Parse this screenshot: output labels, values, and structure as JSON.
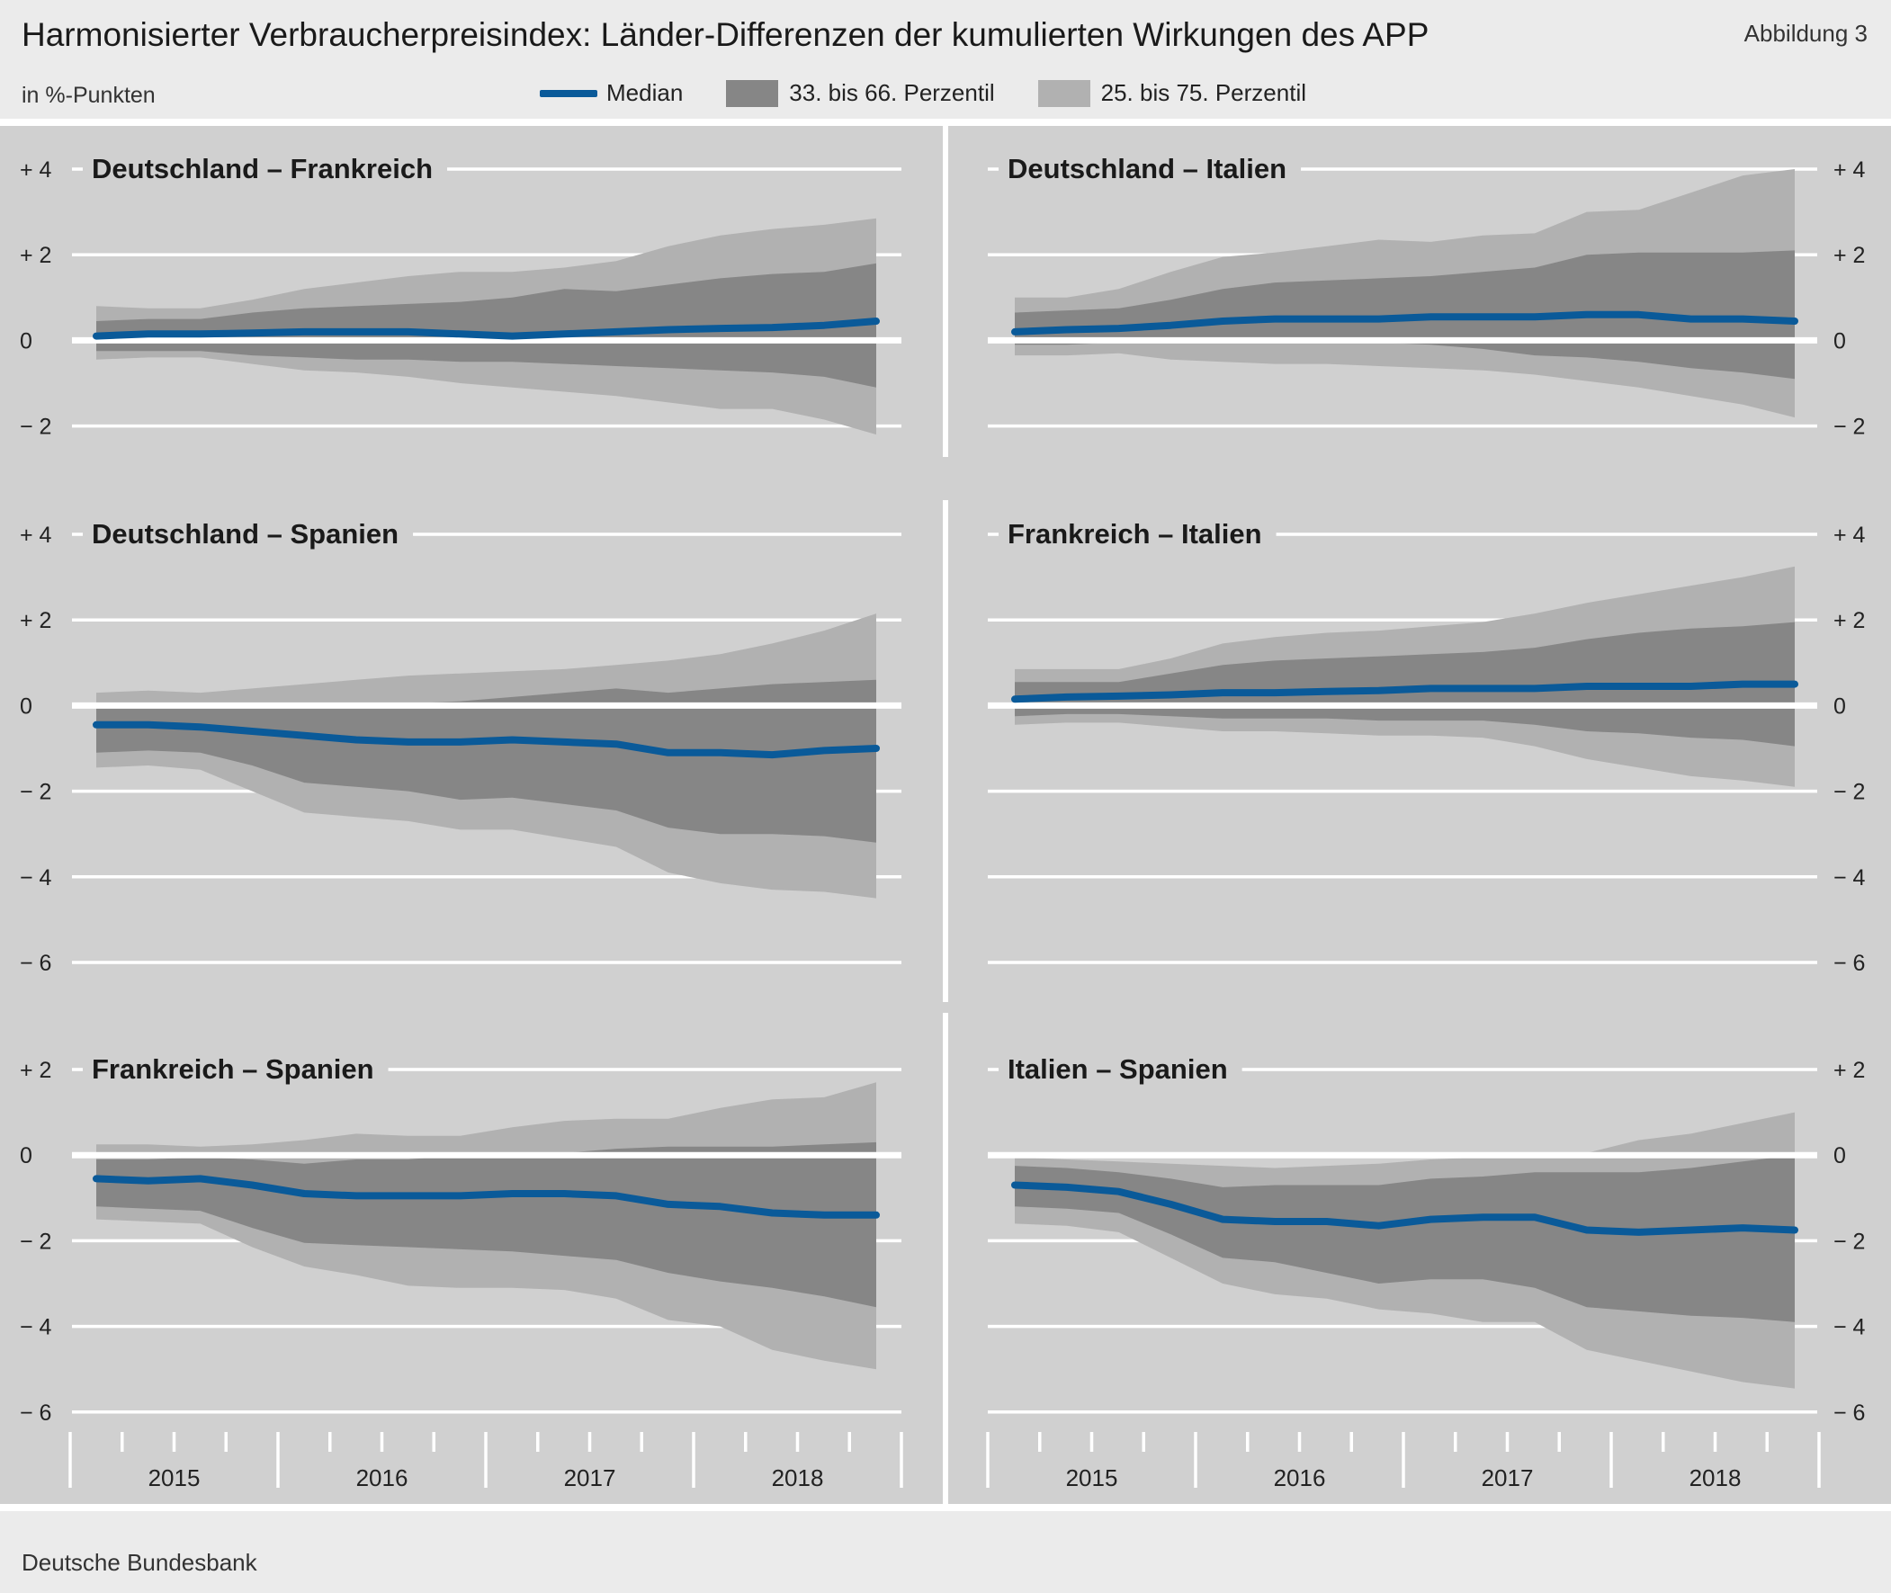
{
  "header": {
    "title": "Harmonisierter Verbraucherpreisindex: Länder-Differenzen der kumulierten Wirkungen des APP",
    "figure_label": "Abbildung 3",
    "unit": "in %-Punkten"
  },
  "legend": {
    "median": "Median",
    "band_inner": "33. bis 66. Perzentil",
    "band_outer": "25. bis 75. Perzentil"
  },
  "footer": {
    "source": "Deutsche Bundesbank"
  },
  "colors": {
    "panel_bg": "#d0d0d0",
    "band_outer": "#b1b1b1",
    "band_inner": "#868686",
    "median": "#0a5a99",
    "grid": "#ffffff"
  },
  "chart_data": [
    {
      "type": "area",
      "title": "Deutschland – Frankreich",
      "x": [
        "2015Q1",
        "2015Q2",
        "2015Q3",
        "2015Q4",
        "2016Q1",
        "2016Q2",
        "2016Q3",
        "2016Q4",
        "2017Q1",
        "2017Q2",
        "2017Q3",
        "2017Q4",
        "2018Q1",
        "2018Q2",
        "2018Q3",
        "2018Q4"
      ],
      "ylim": [
        -2,
        4
      ],
      "yticks": [
        "+ 4",
        "+ 2",
        "0",
        "− 2"
      ],
      "series": [
        {
          "name": "Median",
          "values": [
            0.1,
            0.15,
            0.15,
            0.17,
            0.2,
            0.2,
            0.2,
            0.15,
            0.1,
            0.15,
            0.2,
            0.25,
            0.28,
            0.3,
            0.35,
            0.45
          ]
        },
        {
          "name": "33. bis 66. Perzentil",
          "upper": [
            0.45,
            0.5,
            0.5,
            0.65,
            0.75,
            0.8,
            0.85,
            0.9,
            1.0,
            1.2,
            1.15,
            1.3,
            1.45,
            1.55,
            1.6,
            1.8
          ],
          "lower": [
            -0.25,
            -0.25,
            -0.25,
            -0.35,
            -0.4,
            -0.45,
            -0.45,
            -0.5,
            -0.5,
            -0.55,
            -0.6,
            -0.65,
            -0.7,
            -0.75,
            -0.85,
            -1.1
          ]
        },
        {
          "name": "25. bis 75. Perzentil",
          "upper": [
            0.8,
            0.75,
            0.75,
            0.95,
            1.2,
            1.35,
            1.5,
            1.6,
            1.6,
            1.7,
            1.85,
            2.2,
            2.45,
            2.6,
            2.7,
            2.85
          ],
          "lower": [
            -0.45,
            -0.4,
            -0.4,
            -0.55,
            -0.7,
            -0.75,
            -0.85,
            -1.0,
            -1.1,
            -1.2,
            -1.3,
            -1.45,
            -1.6,
            -1.6,
            -1.85,
            -2.2
          ]
        }
      ]
    },
    {
      "type": "area",
      "title": "Deutschland – Italien",
      "x": [
        "2015Q1",
        "2015Q2",
        "2015Q3",
        "2015Q4",
        "2016Q1",
        "2016Q2",
        "2016Q3",
        "2016Q4",
        "2017Q1",
        "2017Q2",
        "2017Q3",
        "2017Q4",
        "2018Q1",
        "2018Q2",
        "2018Q3",
        "2018Q4"
      ],
      "ylim": [
        -2,
        4
      ],
      "yticks": [
        "+ 4",
        "+ 2",
        "0",
        "− 2"
      ],
      "series": [
        {
          "name": "Median",
          "values": [
            0.2,
            0.25,
            0.28,
            0.35,
            0.45,
            0.5,
            0.5,
            0.5,
            0.55,
            0.55,
            0.55,
            0.6,
            0.6,
            0.5,
            0.5,
            0.45
          ]
        },
        {
          "name": "33. bis 66. Perzentil",
          "upper": [
            0.65,
            0.7,
            0.75,
            0.95,
            1.2,
            1.35,
            1.4,
            1.45,
            1.5,
            1.6,
            1.7,
            2.0,
            2.05,
            2.05,
            2.05,
            2.1
          ],
          "lower": [
            -0.1,
            -0.1,
            -0.05,
            -0.05,
            -0.05,
            -0.05,
            -0.05,
            -0.05,
            -0.1,
            -0.2,
            -0.35,
            -0.4,
            -0.5,
            -0.65,
            -0.75,
            -0.9
          ]
        },
        {
          "name": "25. bis 75. Perzentil",
          "upper": [
            1.0,
            1.0,
            1.2,
            1.6,
            1.95,
            2.05,
            2.2,
            2.35,
            2.3,
            2.45,
            2.5,
            3.0,
            3.05,
            3.45,
            3.85,
            4.0
          ],
          "lower": [
            -0.35,
            -0.35,
            -0.3,
            -0.45,
            -0.5,
            -0.55,
            -0.55,
            -0.6,
            -0.65,
            -0.7,
            -0.8,
            -0.95,
            -1.1,
            -1.3,
            -1.5,
            -1.8
          ]
        }
      ]
    },
    {
      "type": "area",
      "title": "Deutschland – Spanien",
      "x": [
        "2015Q1",
        "2015Q2",
        "2015Q3",
        "2015Q4",
        "2016Q1",
        "2016Q2",
        "2016Q3",
        "2016Q4",
        "2017Q1",
        "2017Q2",
        "2017Q3",
        "2017Q4",
        "2018Q1",
        "2018Q2",
        "2018Q3",
        "2018Q4"
      ],
      "ylim": [
        -6,
        4
      ],
      "yticks": [
        "+ 4",
        "+ 2",
        "0",
        "− 2",
        "− 4",
        "− 6"
      ],
      "series": [
        {
          "name": "Median",
          "values": [
            -0.45,
            -0.45,
            -0.5,
            -0.6,
            -0.7,
            -0.8,
            -0.85,
            -0.85,
            -0.8,
            -0.85,
            -0.9,
            -1.1,
            -1.1,
            -1.15,
            -1.05,
            -1.0
          ]
        },
        {
          "name": "33. bis 66. Perzentil",
          "upper": [
            0.0,
            0.0,
            0.0,
            0.0,
            0.0,
            0.0,
            0.05,
            0.1,
            0.2,
            0.3,
            0.4,
            0.3,
            0.4,
            0.5,
            0.55,
            0.6
          ],
          "lower": [
            -1.1,
            -1.05,
            -1.1,
            -1.4,
            -1.8,
            -1.9,
            -2.0,
            -2.2,
            -2.15,
            -2.3,
            -2.45,
            -2.85,
            -3.0,
            -3.0,
            -3.05,
            -3.2
          ]
        },
        {
          "name": "25. bis 75. Perzentil",
          "upper": [
            0.3,
            0.35,
            0.3,
            0.4,
            0.5,
            0.6,
            0.7,
            0.75,
            0.8,
            0.85,
            0.95,
            1.05,
            1.2,
            1.45,
            1.75,
            2.15
          ],
          "lower": [
            -1.45,
            -1.4,
            -1.5,
            -2.0,
            -2.5,
            -2.6,
            -2.7,
            -2.9,
            -2.9,
            -3.1,
            -3.3,
            -3.9,
            -4.15,
            -4.3,
            -4.35,
            -4.5
          ]
        }
      ]
    },
    {
      "type": "area",
      "title": "Frankreich – Italien",
      "x": [
        "2015Q1",
        "2015Q2",
        "2015Q3",
        "2015Q4",
        "2016Q1",
        "2016Q2",
        "2016Q3",
        "2016Q4",
        "2017Q1",
        "2017Q2",
        "2017Q3",
        "2017Q4",
        "2018Q1",
        "2018Q2",
        "2018Q3",
        "2018Q4"
      ],
      "ylim": [
        -6,
        4
      ],
      "yticks": [
        "+ 4",
        "+ 2",
        "0",
        "− 2",
        "− 4",
        "− 6"
      ],
      "series": [
        {
          "name": "Median",
          "values": [
            0.15,
            0.2,
            0.22,
            0.25,
            0.3,
            0.3,
            0.33,
            0.35,
            0.4,
            0.4,
            0.4,
            0.45,
            0.45,
            0.45,
            0.5,
            0.5
          ]
        },
        {
          "name": "33. bis 66. Perzentil",
          "upper": [
            0.55,
            0.55,
            0.55,
            0.75,
            0.95,
            1.05,
            1.1,
            1.15,
            1.2,
            1.25,
            1.35,
            1.55,
            1.7,
            1.8,
            1.85,
            1.95
          ],
          "lower": [
            -0.25,
            -0.2,
            -0.2,
            -0.25,
            -0.3,
            -0.3,
            -0.3,
            -0.35,
            -0.35,
            -0.35,
            -0.45,
            -0.6,
            -0.65,
            -0.75,
            -0.8,
            -0.95
          ]
        },
        {
          "name": "25. bis 75. Perzentil",
          "upper": [
            0.85,
            0.85,
            0.85,
            1.1,
            1.45,
            1.6,
            1.7,
            1.75,
            1.85,
            1.95,
            2.15,
            2.4,
            2.6,
            2.8,
            3.0,
            3.25
          ],
          "lower": [
            -0.45,
            -0.4,
            -0.4,
            -0.5,
            -0.6,
            -0.6,
            -0.65,
            -0.7,
            -0.7,
            -0.75,
            -0.95,
            -1.25,
            -1.45,
            -1.65,
            -1.75,
            -1.9
          ]
        }
      ]
    },
    {
      "type": "area",
      "title": "Frankreich – Spanien",
      "x": [
        "2015Q1",
        "2015Q2",
        "2015Q3",
        "2015Q4",
        "2016Q1",
        "2016Q2",
        "2016Q3",
        "2016Q4",
        "2017Q1",
        "2017Q2",
        "2017Q3",
        "2017Q4",
        "2018Q1",
        "2018Q2",
        "2018Q3",
        "2018Q4"
      ],
      "ylim": [
        -6,
        2
      ],
      "yticks": [
        "+ 2",
        "0",
        "− 2",
        "− 4",
        "− 6"
      ],
      "series": [
        {
          "name": "Median",
          "values": [
            -0.55,
            -0.6,
            -0.55,
            -0.7,
            -0.9,
            -0.95,
            -0.95,
            -0.95,
            -0.9,
            -0.9,
            -0.95,
            -1.15,
            -1.2,
            -1.35,
            -1.4,
            -1.4
          ]
        },
        {
          "name": "33. bis 66. Perzentil",
          "upper": [
            -0.1,
            -0.1,
            -0.05,
            -0.1,
            -0.2,
            -0.1,
            -0.1,
            0.0,
            0.05,
            0.05,
            0.15,
            0.2,
            0.2,
            0.2,
            0.25,
            0.3
          ],
          "lower": [
            -1.2,
            -1.25,
            -1.3,
            -1.7,
            -2.05,
            -2.1,
            -2.15,
            -2.2,
            -2.25,
            -2.35,
            -2.45,
            -2.75,
            -2.95,
            -3.1,
            -3.3,
            -3.55
          ]
        },
        {
          "name": "25. bis 75. Perzentil",
          "upper": [
            0.25,
            0.25,
            0.2,
            0.25,
            0.35,
            0.5,
            0.45,
            0.45,
            0.65,
            0.8,
            0.85,
            0.85,
            1.1,
            1.3,
            1.35,
            1.7
          ],
          "lower": [
            -1.5,
            -1.55,
            -1.6,
            -2.15,
            -2.6,
            -2.8,
            -3.05,
            -3.1,
            -3.1,
            -3.15,
            -3.35,
            -3.85,
            -4.0,
            -4.55,
            -4.8,
            -5.0
          ]
        }
      ]
    },
    {
      "type": "area",
      "title": "Italien – Spanien",
      "x": [
        "2015Q1",
        "2015Q2",
        "2015Q3",
        "2015Q4",
        "2016Q1",
        "2016Q2",
        "2016Q3",
        "2016Q4",
        "2017Q1",
        "2017Q2",
        "2017Q3",
        "2017Q4",
        "2018Q1",
        "2018Q2",
        "2018Q3",
        "2018Q4"
      ],
      "ylim": [
        -6,
        2
      ],
      "yticks": [
        "+ 2",
        "0",
        "− 2",
        "− 4",
        "− 6"
      ],
      "series": [
        {
          "name": "Median",
          "values": [
            -0.7,
            -0.75,
            -0.85,
            -1.15,
            -1.5,
            -1.55,
            -1.55,
            -1.65,
            -1.5,
            -1.45,
            -1.45,
            -1.75,
            -1.8,
            -1.75,
            -1.7,
            -1.75
          ]
        },
        {
          "name": "33. bis 66. Perzentil",
          "upper": [
            -0.25,
            -0.3,
            -0.4,
            -0.55,
            -0.75,
            -0.7,
            -0.7,
            -0.7,
            -0.55,
            -0.5,
            -0.4,
            -0.4,
            -0.4,
            -0.3,
            -0.15,
            0.0
          ],
          "lower": [
            -1.2,
            -1.25,
            -1.35,
            -1.85,
            -2.4,
            -2.5,
            -2.75,
            -3.0,
            -2.9,
            -2.9,
            -3.1,
            -3.55,
            -3.65,
            -3.75,
            -3.8,
            -3.9
          ]
        },
        {
          "name": "25. bis 75. Perzentil",
          "upper": [
            -0.05,
            -0.1,
            -0.15,
            -0.2,
            -0.25,
            -0.3,
            -0.25,
            -0.2,
            -0.1,
            -0.05,
            0.0,
            0.05,
            0.35,
            0.5,
            0.75,
            1.0
          ],
          "lower": [
            -1.6,
            -1.65,
            -1.8,
            -2.4,
            -3.0,
            -3.25,
            -3.35,
            -3.6,
            -3.7,
            -3.9,
            -3.9,
            -4.55,
            -4.8,
            -5.05,
            -5.3,
            -5.45
          ]
        }
      ]
    }
  ],
  "x_axis": {
    "years": [
      "2015",
      "2016",
      "2017",
      "2018"
    ]
  }
}
